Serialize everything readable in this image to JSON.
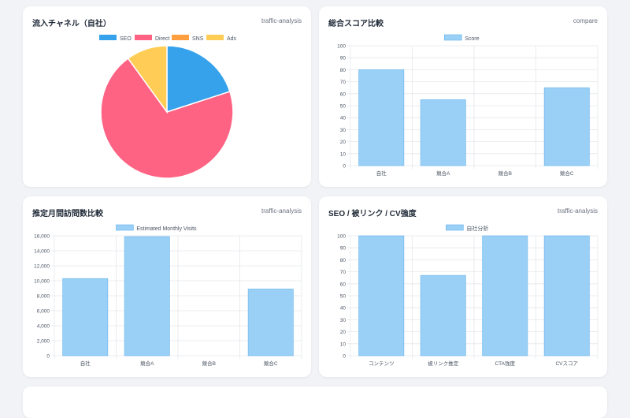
{
  "cards": [
    {
      "title": "流入チャネル（自社）",
      "tag": "traffic-analysis"
    },
    {
      "title": "総合スコア比較",
      "tag": "compare"
    },
    {
      "title": "推定月間訪問数比較",
      "tag": "traffic-analysis"
    },
    {
      "title": "SEO / 被リンク / CV強度",
      "tag": "traffic-analysis"
    }
  ],
  "colors": {
    "bar_fill": "#9ad0f5",
    "bar_border": "#67b3ee",
    "grid": "#e5e7eb",
    "tick": "#4b5563",
    "seo": "#36a2eb",
    "direct": "#ff6384",
    "sns": "#ff9f40",
    "ads": "#ffcd56"
  },
  "chart_data": [
    {
      "type": "pie",
      "labels": [
        "SEO",
        "Direct",
        "SNS",
        "Ads"
      ],
      "values": [
        20,
        70,
        0,
        10
      ],
      "colors": [
        "#36a2eb",
        "#ff6384",
        "#ff9f40",
        "#ffcd56"
      ],
      "legend": "top"
    },
    {
      "type": "bar",
      "categories": [
        "自社",
        "競合A",
        "競合B",
        "競合C"
      ],
      "series": [
        {
          "name": "Score",
          "values": [
            80,
            55,
            0,
            65
          ]
        }
      ],
      "ylim": [
        0,
        100
      ],
      "yticks": [
        "0",
        "10",
        "20",
        "30",
        "40",
        "50",
        "60",
        "70",
        "80",
        "90",
        "100"
      ],
      "grid": true,
      "legend": "top"
    },
    {
      "type": "bar",
      "categories": [
        "自社",
        "競合A",
        "競合B",
        "競合C"
      ],
      "series": [
        {
          "name": "Estimated Monthly Visits",
          "values": [
            10300,
            15900,
            0,
            8900
          ]
        }
      ],
      "ylim": [
        0,
        16000
      ],
      "yticks": [
        "0",
        "2,000",
        "4,000",
        "6,000",
        "8,000",
        "10,000",
        "12,000",
        "14,000",
        "16,000"
      ],
      "grid": true,
      "legend": "top"
    },
    {
      "type": "bar",
      "categories": [
        "コンテンツ",
        "被リンク推定",
        "CTA強度",
        "CVスコア"
      ],
      "series": [
        {
          "name": "自社分析",
          "values": [
            100,
            67,
            100,
            100
          ]
        }
      ],
      "ylim": [
        0,
        100
      ],
      "yticks": [
        "0",
        "10",
        "20",
        "30",
        "40",
        "50",
        "60",
        "70",
        "80",
        "90",
        "100"
      ],
      "grid": true,
      "legend": "top"
    }
  ]
}
